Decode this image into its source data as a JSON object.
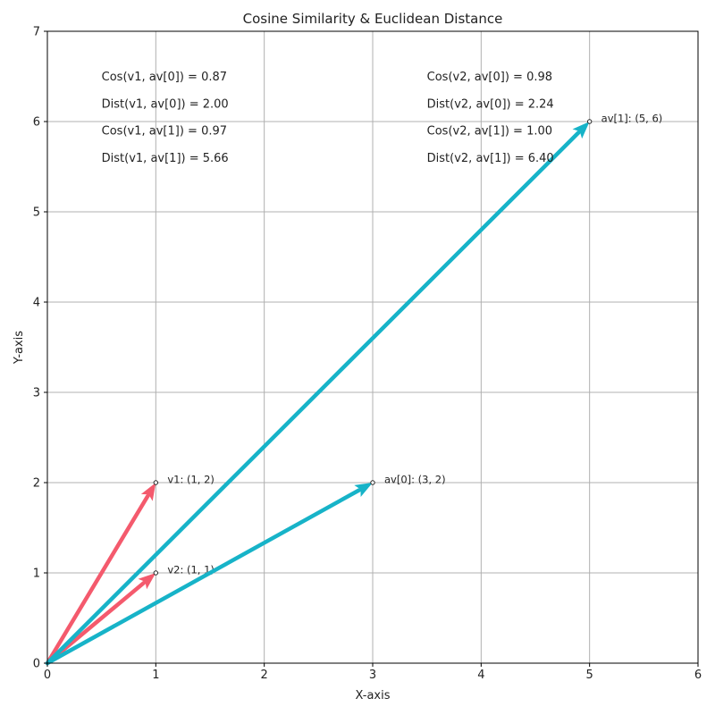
{
  "chart_data": {
    "type": "quiver",
    "title": "Cosine Similarity & Euclidean Distance",
    "xlabel": "X-axis",
    "ylabel": "Y-axis",
    "xlim": [
      0,
      6
    ],
    "ylim": [
      0,
      7
    ],
    "xticks": [
      0,
      1,
      2,
      3,
      4,
      5,
      6
    ],
    "yticks": [
      0,
      1,
      2,
      3,
      4,
      5,
      6,
      7
    ],
    "grid": true,
    "vectors": [
      {
        "label": "v1: (1, 2)",
        "x": 1,
        "y": 2,
        "color": "#f45a6d"
      },
      {
        "label": "v2: (1, 1)",
        "x": 1,
        "y": 1,
        "color": "#f45a6d"
      },
      {
        "label": "av[0]: (3, 2)",
        "x": 3,
        "y": 2,
        "color": "#17b3c8"
      },
      {
        "label": "av[1]: (5, 6)",
        "x": 5,
        "y": 6,
        "color": "#17b3c8"
      }
    ],
    "annotations": [
      {
        "text": "Cos(v1, av[0]) = 0.87",
        "x": 0.5,
        "y": 6.5
      },
      {
        "text": "Dist(v1, av[0]) = 2.00",
        "x": 0.5,
        "y": 6.2
      },
      {
        "text": "Cos(v1, av[1]) = 0.97",
        "x": 0.5,
        "y": 5.9
      },
      {
        "text": "Dist(v1, av[1]) = 5.66",
        "x": 0.5,
        "y": 5.6
      },
      {
        "text": "Cos(v2, av[0]) = 0.98",
        "x": 3.5,
        "y": 6.5
      },
      {
        "text": "Dist(v2, av[0]) = 2.24",
        "x": 3.5,
        "y": 6.2
      },
      {
        "text": "Cos(v2, av[1]) = 1.00",
        "x": 3.5,
        "y": 5.9
      },
      {
        "text": "Dist(v2, av[1]) = 6.40",
        "x": 3.5,
        "y": 5.6
      }
    ]
  }
}
